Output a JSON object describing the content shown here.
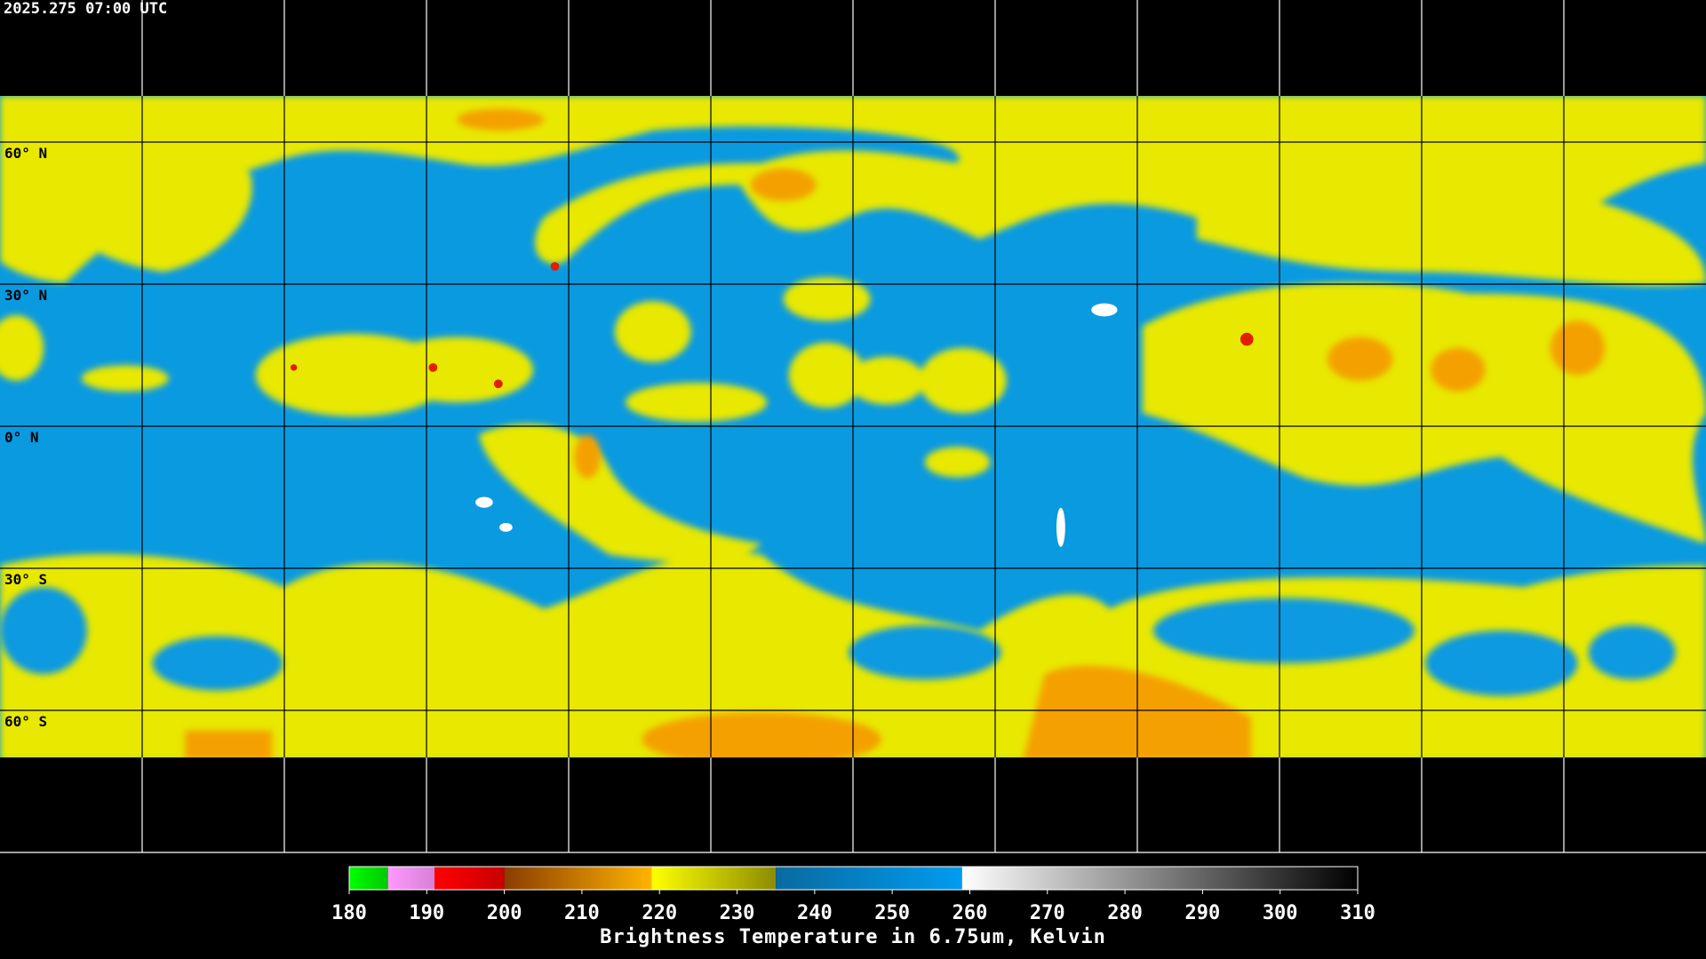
{
  "timestamp": "2025.275 07:00 UTC",
  "lat_lines": [
    {
      "value": 60,
      "label": "60° N"
    },
    {
      "value": 30,
      "label": "30° N"
    },
    {
      "value": 0,
      "label": "0° N"
    },
    {
      "value": -30,
      "label": "30° S"
    },
    {
      "value": -60,
      "label": "60° S"
    }
  ],
  "colorbar": {
    "title": "Brightness Temperature in 6.75um, Kelvin",
    "range": [
      180,
      310
    ],
    "ticks": [
      180,
      190,
      200,
      210,
      220,
      230,
      240,
      250,
      260,
      270,
      280,
      290,
      300,
      310
    ],
    "segments": [
      {
        "range": [
          180,
          185
        ],
        "colors": [
          "#00ff00",
          "#00c800"
        ]
      },
      {
        "range": [
          185,
          191
        ],
        "colors": [
          "#ff99ff",
          "#d77fd7"
        ]
      },
      {
        "range": [
          191,
          200
        ],
        "colors": [
          "#ff0000",
          "#c80000"
        ]
      },
      {
        "range": [
          200,
          219
        ],
        "colors": [
          "#8a3c00",
          "#ffb400"
        ]
      },
      {
        "range": [
          219,
          235
        ],
        "colors": [
          "#ffff00",
          "#8c8c00"
        ]
      },
      {
        "range": [
          235,
          259
        ],
        "colors": [
          "#0a6aa0",
          "#009cf0"
        ]
      },
      {
        "range": [
          259,
          310
        ],
        "colors": [
          "#ffffff",
          "#000000"
        ]
      }
    ]
  }
}
